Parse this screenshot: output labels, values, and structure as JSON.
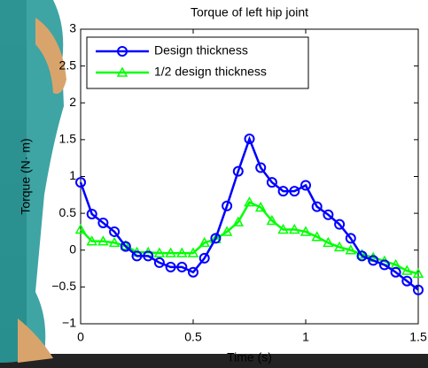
{
  "chart_data": {
    "type": "line",
    "title": "Torque of left hip joint",
    "x_label": "Time (s)",
    "y_label": "Torque (N· m)",
    "x": [
      0,
      0.05,
      0.1,
      0.15,
      0.2,
      0.25,
      0.3,
      0.35,
      0.4,
      0.45,
      0.5,
      0.55,
      0.6,
      0.65,
      0.7,
      0.75,
      0.8,
      0.85,
      0.9,
      0.95,
      1.0,
      1.05,
      1.1,
      1.15,
      1.2,
      1.25,
      1.3,
      1.35,
      1.4,
      1.45,
      1.5
    ],
    "series": [
      {
        "name": "Design thickness",
        "color": "#0000ff",
        "marker": "circle",
        "values": [
          0.92,
          0.49,
          0.37,
          0.25,
          0.05,
          -0.08,
          -0.08,
          -0.17,
          -0.23,
          -0.23,
          -0.3,
          -0.11,
          0.16,
          0.6,
          1.07,
          1.51,
          1.12,
          0.92,
          0.8,
          0.8,
          0.88,
          0.59,
          0.48,
          0.35,
          0.16,
          -0.08,
          -0.14,
          -0.2,
          -0.3,
          -0.42,
          -0.54
        ]
      },
      {
        "name": "1/2 design thickness",
        "color": "#00ff00",
        "marker": "triangle",
        "values": [
          0.28,
          0.12,
          0.12,
          0.1,
          0.06,
          -0.03,
          -0.03,
          -0.04,
          -0.04,
          -0.04,
          -0.04,
          0.1,
          0.15,
          0.25,
          0.38,
          0.65,
          0.58,
          0.4,
          0.28,
          0.28,
          0.25,
          0.18,
          0.1,
          0.04,
          0.0,
          -0.06,
          -0.1,
          -0.15,
          -0.2,
          -0.28,
          -0.32
        ]
      }
    ],
    "xlim": [
      0,
      1.5
    ],
    "ylim": [
      -1,
      3
    ],
    "xticks": [
      0,
      0.5,
      1,
      1.5
    ],
    "yticks": [
      {
        "value": -1,
        "label": "−1"
      },
      {
        "value": -0.5,
        "label": "−0.5"
      },
      0,
      0.5,
      1,
      1.5,
      2,
      2.5,
      3
    ],
    "legend": "upper left"
  }
}
